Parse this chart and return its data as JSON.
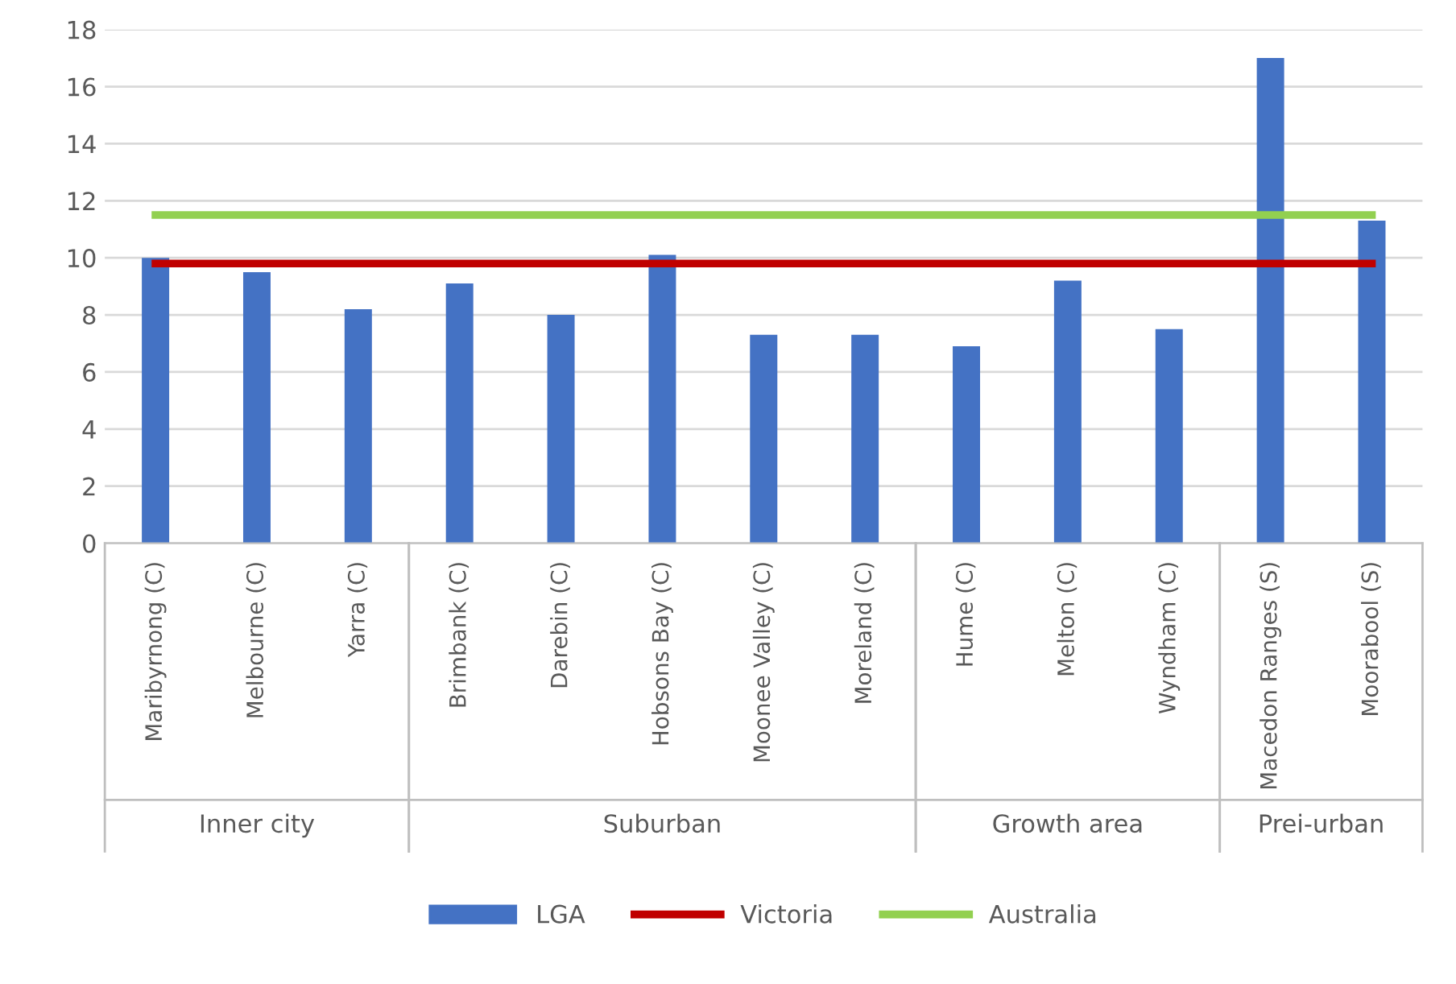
{
  "chart_data": {
    "type": "bar",
    "categories": [
      "Maribyrnong (C)",
      "Melbourne (C)",
      "Yarra (C)",
      "Brimbank (C)",
      "Darebin (C)",
      "Hobsons Bay (C)",
      "Moonee Valley (C)",
      "Moreland (C)",
      "Hume (C)",
      "Melton (C)",
      "Wyndham (C)",
      "Macedon Ranges (S)",
      "Moorabool (S)"
    ],
    "series": [
      {
        "name": "LGA",
        "color": "#4472c4",
        "values": [
          10.0,
          9.5,
          8.2,
          9.1,
          8.0,
          10.1,
          7.3,
          7.3,
          6.9,
          9.2,
          7.5,
          17.0,
          11.3
        ]
      },
      {
        "name": "Victoria",
        "type": "line",
        "color": "#c00000",
        "values": [
          9.8,
          9.8,
          9.8,
          9.8,
          9.8,
          9.8,
          9.8,
          9.8,
          9.8,
          9.8,
          9.8,
          9.8,
          9.8
        ]
      },
      {
        "name": "Australia",
        "type": "line",
        "color": "#92d050",
        "values": [
          11.5,
          11.5,
          11.5,
          11.5,
          11.5,
          11.5,
          11.5,
          11.5,
          11.5,
          11.5,
          11.5,
          11.5,
          11.5
        ]
      }
    ],
    "annotations": [
      "Inner city",
      "Suburban",
      "Growth area",
      "Prei-urban"
    ],
    "ylim": [
      0,
      18
    ],
    "yticks": [
      0,
      2,
      4,
      6,
      8,
      10,
      12,
      14,
      16,
      18
    ],
    "grid": "y",
    "legend": "bottom",
    "marker": "none",
    "line_style": "solid"
  }
}
